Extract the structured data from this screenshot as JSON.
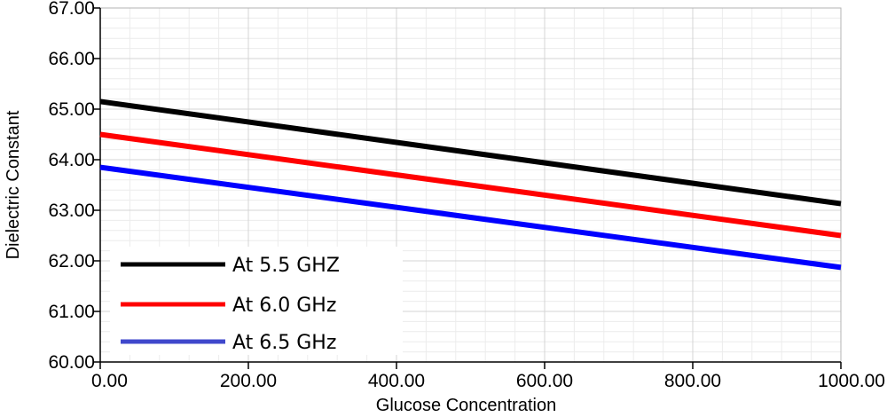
{
  "chart_data": {
    "type": "line",
    "title": "",
    "xlabel": "Glucose Concentration",
    "ylabel": "Dielectric Constant",
    "xlim": [
      0,
      1000
    ],
    "ylim": [
      60,
      67
    ],
    "x_ticks": [
      0,
      200,
      400,
      600,
      800,
      1000
    ],
    "x_tick_labels": [
      "0.00",
      "200.00",
      "400.00",
      "600.00",
      "800.00",
      "1000.00"
    ],
    "y_ticks": [
      60,
      61,
      62,
      63,
      64,
      65,
      66,
      67
    ],
    "y_tick_labels": [
      "60.00",
      "61.00",
      "62.00",
      "63.00",
      "64.00",
      "65.00",
      "66.00",
      "67.00"
    ],
    "grid": true,
    "legend_position": "bottom-left",
    "x": [
      0,
      1000
    ],
    "series": [
      {
        "name": "At 5.5 GHZ",
        "color": "#000000",
        "values": [
          65.15,
          63.13
        ]
      },
      {
        "name": "At 6.0 GHz",
        "color": "#ff0000",
        "values": [
          64.5,
          62.5
        ]
      },
      {
        "name": "At 6.5 GHz",
        "color": "#0000ff",
        "values": [
          63.85,
          61.87
        ]
      }
    ],
    "legend_colors": [
      "#000000",
      "#ff0000",
      "#3f48cc"
    ]
  }
}
